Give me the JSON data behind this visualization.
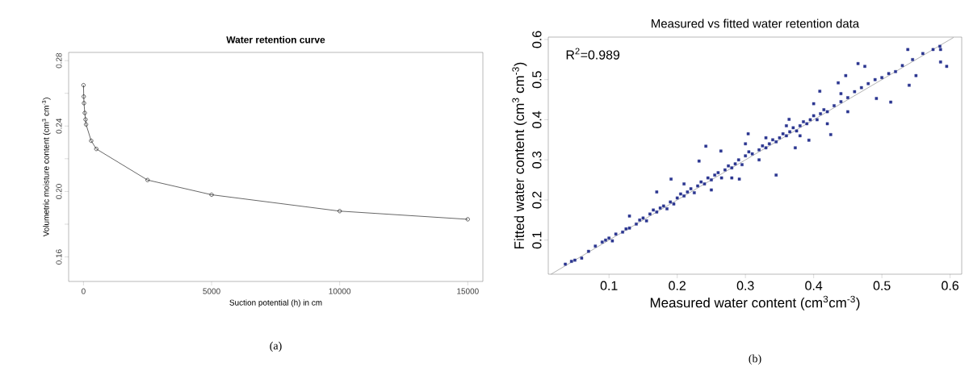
{
  "chart_data": [
    {
      "type": "line",
      "title": "Water retention curve",
      "xlabel": "Suction potential (h) in cm",
      "ylabel": "Volumetric moisture content (cm$^{3}$ cm$^{-3}$)",
      "x": [
        0,
        10,
        20,
        50,
        80,
        100,
        300,
        500,
        2500,
        5000,
        10000,
        15000
      ],
      "series": [
        {
          "color": "#000000",
          "values": [
            0.265,
            0.258,
            0.254,
            0.248,
            0.244,
            0.241,
            0.231,
            0.226,
            0.207,
            0.198,
            0.188,
            0.183
          ]
        }
      ],
      "xlim": [
        -580,
        15590
      ],
      "ylim": [
        0.145,
        0.285
      ],
      "xticks": [
        0,
        5000,
        10000,
        15000
      ],
      "yticks": [
        0.16,
        {
          "value": 0.18,
          "label": null
        },
        {
          "value": 0.2,
          "label": "0.20"
        },
        {
          "value": 0.22,
          "label": null
        },
        0.24,
        {
          "value": 0.26,
          "label": null
        },
        0.28
      ],
      "marker": "circle",
      "line_style": "solid",
      "annotations": [
        "(a)"
      ]
    },
    {
      "type": "scatter",
      "title": "Measured vs fitted water retention data",
      "xlabel": "Measured water content (cm$^{3}$cm$^{-3}$)",
      "ylabel": "Fitted water content (cm$^{3}$ cm$^{-3}$)",
      "series": [
        {
          "color": "#2a3590",
          "x": [
            0.036,
            0.045,
            0.05,
            0.06,
            0.07,
            0.08,
            0.09,
            0.095,
            0.1,
            0.105,
            0.11,
            0.12,
            0.125,
            0.13,
            0.13,
            0.14,
            0.145,
            0.15,
            0.155,
            0.16,
            0.165,
            0.17,
            0.17,
            0.175,
            0.18,
            0.185,
            0.19,
            0.191,
            0.195,
            0.2,
            0.205,
            0.21,
            0.21,
            0.215,
            0.22,
            0.225,
            0.23,
            0.232,
            0.235,
            0.24,
            0.242,
            0.245,
            0.25,
            0.25,
            0.255,
            0.26,
            0.264,
            0.265,
            0.27,
            0.275,
            0.28,
            0.28,
            0.285,
            0.29,
            0.291,
            0.295,
            0.3,
            0.3,
            0.304,
            0.305,
            0.31,
            0.32,
            0.32,
            0.325,
            0.33,
            0.33,
            0.335,
            0.34,
            0.345,
            0.345,
            0.35,
            0.355,
            0.36,
            0.36,
            0.364,
            0.365,
            0.37,
            0.373,
            0.375,
            0.38,
            0.38,
            0.385,
            0.39,
            0.393,
            0.395,
            0.4,
            0.4,
            0.405,
            0.409,
            0.41,
            0.415,
            0.42,
            0.42,
            0.425,
            0.43,
            0.436,
            0.44,
            0.44,
            0.447,
            0.45,
            0.45,
            0.46,
            0.465,
            0.47,
            0.475,
            0.48,
            0.49,
            0.492,
            0.5,
            0.51,
            0.513,
            0.52,
            0.53,
            0.538,
            0.54,
            0.545,
            0.55,
            0.56,
            0.575,
            0.585,
            0.586,
            0.586,
            0.595
          ],
          "values": [
            0.04,
            0.047,
            0.05,
            0.055,
            0.072,
            0.085,
            0.095,
            0.1,
            0.105,
            0.098,
            0.115,
            0.12,
            0.128,
            0.13,
            0.16,
            0.14,
            0.15,
            0.155,
            0.148,
            0.165,
            0.175,
            0.17,
            0.22,
            0.18,
            0.185,
            0.178,
            0.195,
            0.252,
            0.19,
            0.205,
            0.215,
            0.21,
            0.24,
            0.22,
            0.228,
            0.218,
            0.235,
            0.297,
            0.245,
            0.24,
            0.334,
            0.255,
            0.25,
            0.225,
            0.262,
            0.268,
            0.322,
            0.255,
            0.275,
            0.285,
            0.28,
            0.255,
            0.29,
            0.3,
            0.252,
            0.288,
            0.31,
            0.34,
            0.365,
            0.32,
            0.315,
            0.325,
            0.3,
            0.335,
            0.33,
            0.355,
            0.34,
            0.35,
            0.345,
            0.262,
            0.355,
            0.365,
            0.36,
            0.385,
            0.401,
            0.37,
            0.38,
            0.33,
            0.372,
            0.385,
            0.36,
            0.395,
            0.39,
            0.349,
            0.4,
            0.41,
            0.44,
            0.4,
            0.471,
            0.415,
            0.425,
            0.42,
            0.39,
            0.363,
            0.435,
            0.492,
            0.445,
            0.465,
            0.51,
            0.455,
            0.42,
            0.47,
            0.54,
            0.48,
            0.533,
            0.49,
            0.5,
            0.453,
            0.505,
            0.515,
            0.444,
            0.52,
            0.535,
            0.575,
            0.486,
            0.55,
            0.51,
            0.565,
            0.575,
            0.583,
            0.575,
            0.544,
            0.533
          ]
        },
        {
          "type": "line",
          "color": "#808080",
          "marker": "none",
          "x": [
            0.015,
            0.605
          ],
          "values": [
            0.015,
            0.605
          ]
        }
      ],
      "xlim": [
        0.011,
        0.617
      ],
      "ylim": [
        0.015,
        0.606
      ],
      "xticks": [
        0.1,
        0.2,
        0.3,
        0.4,
        0.5,
        0.6
      ],
      "yticks": [
        0.1,
        0.2,
        0.3,
        0.4,
        0.5,
        0.6
      ],
      "marker": "square",
      "annotations": [
        "R$^{2}$=0.989",
        "(b)"
      ]
    }
  ]
}
